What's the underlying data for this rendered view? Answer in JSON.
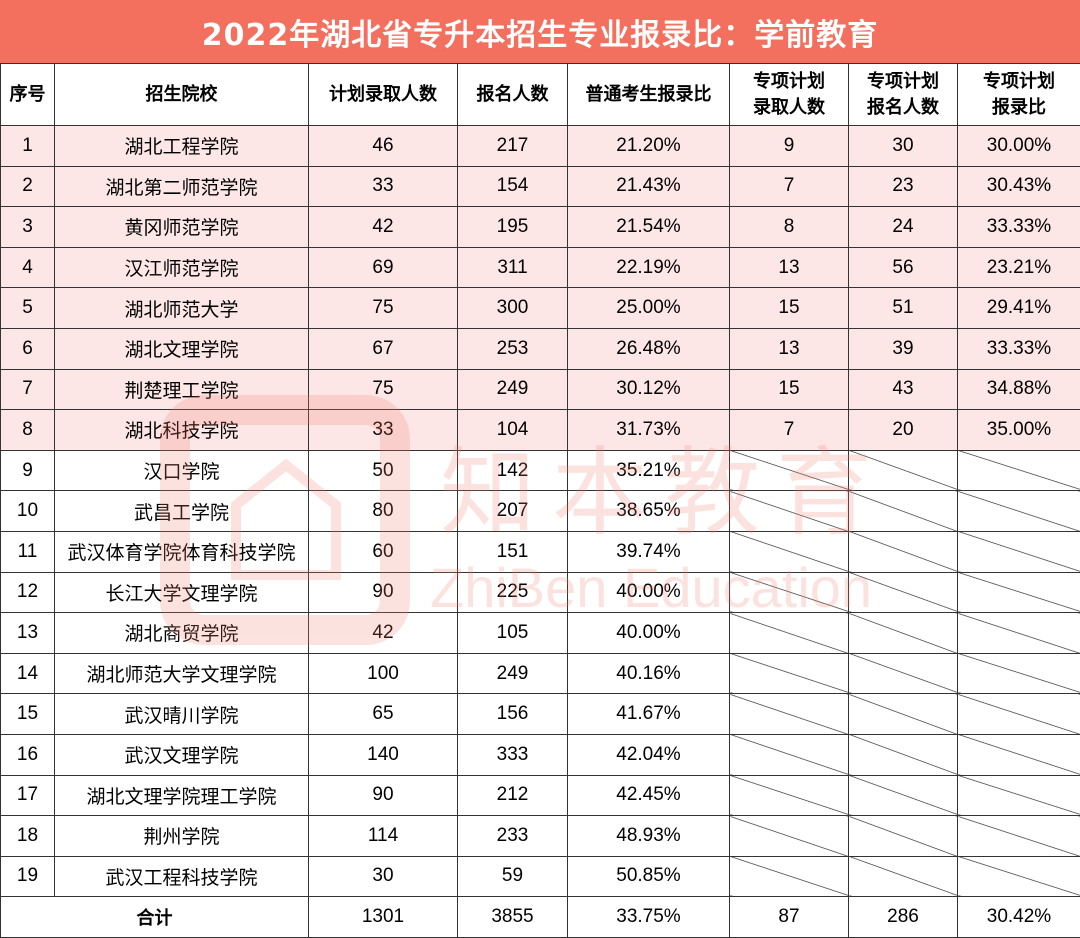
{
  "title": "2022年湖北省专升本招生专业报录比：学前教育",
  "headers": {
    "seq": "序号",
    "school": "招生院校",
    "plan": "计划录取人数",
    "applicants": "报名人数",
    "ratio": "普通考生报录比",
    "special_plan_l1": "专项计划",
    "special_plan_l2": "录取人数",
    "special_apply_l1": "专项计划",
    "special_apply_l2": "报名人数",
    "special_ratio_l1": "专项计划",
    "special_ratio_l2": "报录比"
  },
  "rows": [
    {
      "seq": "1",
      "school": "湖北工程学院",
      "plan": "46",
      "applicants": "217",
      "ratio": "21.20%",
      "sp_plan": "9",
      "sp_apply": "30",
      "sp_ratio": "30.00%"
    },
    {
      "seq": "2",
      "school": "湖北第二师范学院",
      "plan": "33",
      "applicants": "154",
      "ratio": "21.43%",
      "sp_plan": "7",
      "sp_apply": "23",
      "sp_ratio": "30.43%"
    },
    {
      "seq": "3",
      "school": "黄冈师范学院",
      "plan": "42",
      "applicants": "195",
      "ratio": "21.54%",
      "sp_plan": "8",
      "sp_apply": "24",
      "sp_ratio": "33.33%"
    },
    {
      "seq": "4",
      "school": "汉江师范学院",
      "plan": "69",
      "applicants": "311",
      "ratio": "22.19%",
      "sp_plan": "13",
      "sp_apply": "56",
      "sp_ratio": "23.21%"
    },
    {
      "seq": "5",
      "school": "湖北师范大学",
      "plan": "75",
      "applicants": "300",
      "ratio": "25.00%",
      "sp_plan": "15",
      "sp_apply": "51",
      "sp_ratio": "29.41%"
    },
    {
      "seq": "6",
      "school": "湖北文理学院",
      "plan": "67",
      "applicants": "253",
      "ratio": "26.48%",
      "sp_plan": "13",
      "sp_apply": "39",
      "sp_ratio": "33.33%"
    },
    {
      "seq": "7",
      "school": "荆楚理工学院",
      "plan": "75",
      "applicants": "249",
      "ratio": "30.12%",
      "sp_plan": "15",
      "sp_apply": "43",
      "sp_ratio": "34.88%"
    },
    {
      "seq": "8",
      "school": "湖北科技学院",
      "plan": "33",
      "applicants": "104",
      "ratio": "31.73%",
      "sp_plan": "7",
      "sp_apply": "20",
      "sp_ratio": "35.00%"
    },
    {
      "seq": "9",
      "school": "汉口学院",
      "plan": "50",
      "applicants": "142",
      "ratio": "35.21%"
    },
    {
      "seq": "10",
      "school": "武昌工学院",
      "plan": "80",
      "applicants": "207",
      "ratio": "38.65%"
    },
    {
      "seq": "11",
      "school": "武汉体育学院体育科技学院",
      "plan": "60",
      "applicants": "151",
      "ratio": "39.74%"
    },
    {
      "seq": "12",
      "school": "长江大学文理学院",
      "plan": "90",
      "applicants": "225",
      "ratio": "40.00%"
    },
    {
      "seq": "13",
      "school": "湖北商贸学院",
      "plan": "42",
      "applicants": "105",
      "ratio": "40.00%"
    },
    {
      "seq": "14",
      "school": "湖北师范大学文理学院",
      "plan": "100",
      "applicants": "249",
      "ratio": "40.16%"
    },
    {
      "seq": "15",
      "school": "武汉晴川学院",
      "plan": "65",
      "applicants": "156",
      "ratio": "41.67%"
    },
    {
      "seq": "16",
      "school": "武汉文理学院",
      "plan": "140",
      "applicants": "333",
      "ratio": "42.04%"
    },
    {
      "seq": "17",
      "school": "湖北文理学院理工学院",
      "plan": "90",
      "applicants": "212",
      "ratio": "42.45%"
    },
    {
      "seq": "18",
      "school": "荆州学院",
      "plan": "114",
      "applicants": "233",
      "ratio": "48.93%"
    },
    {
      "seq": "19",
      "school": "武汉工程科技学院",
      "plan": "30",
      "applicants": "59",
      "ratio": "50.85%"
    }
  ],
  "total": {
    "label": "合计",
    "plan": "1301",
    "applicants": "3855",
    "ratio": "33.75%",
    "sp_plan": "87",
    "sp_apply": "286",
    "sp_ratio": "30.42%"
  },
  "watermark": {
    "cn": "知本教育",
    "en": "ZhiBen Education"
  },
  "colors": {
    "title_bg": "#f36f5e",
    "highlight_row": "#fde6e6",
    "watermark": "#f08070"
  }
}
